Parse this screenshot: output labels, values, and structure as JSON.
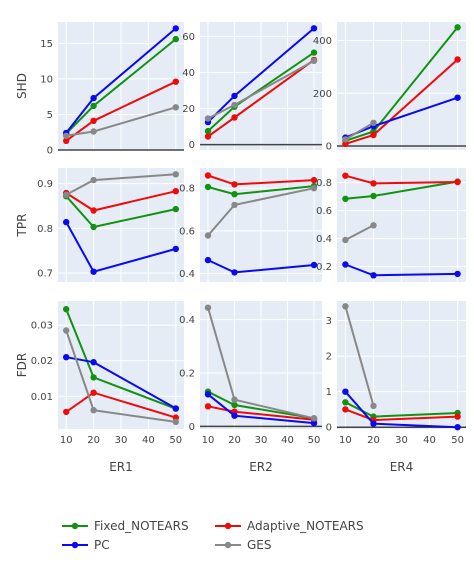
{
  "legend": {
    "placement": "bottom",
    "items": [
      {
        "label": "Fixed_NOTEARS",
        "color": "#119311"
      },
      {
        "label": "Adaptive_NOTEARS",
        "color": "#f00a0a"
      },
      {
        "label": "PC",
        "color": "#0a0af0"
      },
      {
        "label": "GES",
        "color": "#888888"
      }
    ]
  },
  "chart_data": {
    "type": "line",
    "grid": true,
    "x_values": [
      10,
      20,
      50
    ],
    "x_ticks": [
      10,
      20,
      30,
      40,
      50
    ],
    "columns": [
      "ER1",
      "ER2",
      "ER4"
    ],
    "rows": [
      "SHD",
      "TPR",
      "FDR"
    ],
    "panels": [
      {
        "row": "SHD",
        "col": "ER1",
        "ylim": [
          0,
          18
        ],
        "yticks": [
          "0",
          "5",
          "10",
          "15"
        ],
        "ytick_values": [
          0,
          5,
          10,
          15
        ],
        "series": [
          {
            "name": "Fixed_NOTEARS",
            "values": [
              2.3,
              6.2,
              15.6
            ]
          },
          {
            "name": "Adaptive_NOTEARS",
            "values": [
              1.3,
              4.1,
              9.6
            ]
          },
          {
            "name": "PC",
            "values": [
              2.4,
              7.3,
              17.1
            ]
          },
          {
            "name": "GES",
            "values": [
              2.0,
              2.6,
              6.0
            ]
          }
        ]
      },
      {
        "row": "SHD",
        "col": "ER2",
        "ylim": [
          -3,
          68
        ],
        "yticks": [
          "0",
          "20",
          "40",
          "60"
        ],
        "ytick_values": [
          0,
          20,
          40,
          60
        ],
        "series": [
          {
            "name": "Fixed_NOTEARS",
            "values": [
              7.5,
              21.0,
              51.0
            ]
          },
          {
            "name": "Adaptive_NOTEARS",
            "values": [
              4.5,
              15.0,
              47.0
            ]
          },
          {
            "name": "PC",
            "values": [
              12.5,
              27.0,
              64.5
            ]
          },
          {
            "name": "GES",
            "values": [
              14.5,
              22.0,
              46.5
            ]
          }
        ]
      },
      {
        "row": "SHD",
        "col": "ER4",
        "ylim": [
          -15,
          470
        ],
        "yticks": [
          "0",
          "200",
          "400"
        ],
        "ytick_values": [
          0,
          200,
          400
        ],
        "series": [
          {
            "name": "Fixed_NOTEARS",
            "values": [
              20,
              55,
              450
            ]
          },
          {
            "name": "Adaptive_NOTEARS",
            "values": [
              8,
              42,
              328
            ]
          },
          {
            "name": "PC",
            "values": [
              32,
              75,
              183
            ]
          },
          {
            "name": "GES",
            "values": [
              25,
              88,
              null
            ]
          }
        ]
      },
      {
        "row": "TPR",
        "col": "ER1",
        "ylim": [
          0.68,
          0.935
        ],
        "yticks": [
          "0.7",
          "0.8",
          "0.9"
        ],
        "ytick_values": [
          0.7,
          0.8,
          0.9
        ],
        "series": [
          {
            "name": "Fixed_NOTEARS",
            "values": [
              0.872,
              0.803,
              0.843
            ]
          },
          {
            "name": "Adaptive_NOTEARS",
            "values": [
              0.879,
              0.84,
              0.883
            ]
          },
          {
            "name": "PC",
            "values": [
              0.814,
              0.703,
              0.754
            ]
          },
          {
            "name": "GES",
            "values": [
              0.875,
              0.908,
              0.921
            ]
          }
        ]
      },
      {
        "row": "TPR",
        "col": "ER2",
        "ylim": [
          0.36,
          0.895
        ],
        "yticks": [
          "0.4",
          "0.6",
          "0.8"
        ],
        "ytick_values": [
          0.4,
          0.6,
          0.8
        ],
        "series": [
          {
            "name": "Fixed_NOTEARS",
            "values": [
              0.806,
              0.772,
              0.81
            ]
          },
          {
            "name": "Adaptive_NOTEARS",
            "values": [
              0.86,
              0.818,
              0.838
            ]
          },
          {
            "name": "PC",
            "values": [
              0.463,
              0.405,
              0.44
            ]
          },
          {
            "name": "GES",
            "values": [
              0.578,
              0.722,
              0.8
            ]
          }
        ]
      },
      {
        "row": "TPR",
        "col": "ER4",
        "ylim": [
          0.09,
          0.905
        ],
        "yticks": [
          "0.2",
          "0.4",
          "0.6",
          "0.8"
        ],
        "ytick_values": [
          0.2,
          0.4,
          0.6,
          0.8
        ],
        "series": [
          {
            "name": "Fixed_NOTEARS",
            "values": [
              0.685,
              0.705,
              0.808
            ]
          },
          {
            "name": "Adaptive_NOTEARS",
            "values": [
              0.85,
              0.795,
              0.805
            ]
          },
          {
            "name": "PC",
            "values": [
              0.215,
              0.138,
              0.148
            ]
          },
          {
            "name": "GES",
            "values": [
              0.39,
              0.495,
              null
            ]
          }
        ]
      },
      {
        "row": "FDR",
        "col": "ER1",
        "ylim": [
          0.0008,
          0.0368
        ],
        "yticks": [
          "0.01",
          "0.02",
          "0.03"
        ],
        "ytick_values": [
          0.01,
          0.02,
          0.03
        ],
        "series": [
          {
            "name": "Fixed_NOTEARS",
            "values": [
              0.0345,
              0.0153,
              0.0065
            ]
          },
          {
            "name": "Adaptive_NOTEARS",
            "values": [
              0.0056,
              0.011,
              0.004
            ]
          },
          {
            "name": "PC",
            "values": [
              0.021,
              0.0196,
              0.0066
            ]
          },
          {
            "name": "GES",
            "values": [
              0.0285,
              0.0061,
              0.0028
            ]
          }
        ]
      },
      {
        "row": "FDR",
        "col": "ER2",
        "ylim": [
          -0.01,
          0.47
        ],
        "yticks": [
          "0",
          "0.2",
          "0.4"
        ],
        "ytick_values": [
          0,
          0.2,
          0.4
        ],
        "series": [
          {
            "name": "Fixed_NOTEARS",
            "values": [
              0.13,
              0.08,
              0.03
            ]
          },
          {
            "name": "Adaptive_NOTEARS",
            "values": [
              0.075,
              0.055,
              0.025
            ]
          },
          {
            "name": "PC",
            "values": [
              0.12,
              0.04,
              0.012
            ]
          },
          {
            "name": "GES",
            "values": [
              0.445,
              0.1,
              0.03
            ]
          }
        ]
      },
      {
        "row": "FDR",
        "col": "ER4",
        "ylim": [
          -0.05,
          3.55
        ],
        "yticks": [
          "0",
          "1",
          "2",
          "3"
        ],
        "ytick_values": [
          0,
          1,
          2,
          3
        ],
        "series": [
          {
            "name": "Fixed_NOTEARS",
            "values": [
              0.7,
              0.3,
              0.4
            ]
          },
          {
            "name": "Adaptive_NOTEARS",
            "values": [
              0.5,
              0.2,
              0.3
            ]
          },
          {
            "name": "PC",
            "values": [
              1.0,
              0.1,
              0.0
            ]
          },
          {
            "name": "GES",
            "values": [
              3.4,
              0.6,
              null
            ]
          }
        ]
      }
    ]
  }
}
